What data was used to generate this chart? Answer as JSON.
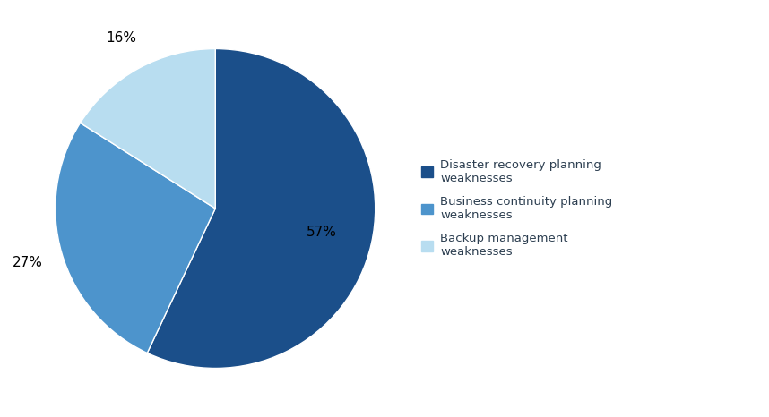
{
  "slices": [
    57,
    27,
    16
  ],
  "colors": [
    "#1b4f8a",
    "#4d94cc",
    "#b8ddf0"
  ],
  "pct_labels": [
    "57%",
    "27%",
    "16%"
  ],
  "legend_labels": [
    "Disaster recovery planning\nweaknesses",
    "Business continuity planning\nweaknesses",
    "Backup management\nweaknesses"
  ],
  "legend_colors": [
    "#1b4f8a",
    "#4d94cc",
    "#b8ddf0"
  ],
  "background_color": "#ffffff",
  "startangle": 90,
  "pct_font_size": 11,
  "legend_font_size": 9.5
}
